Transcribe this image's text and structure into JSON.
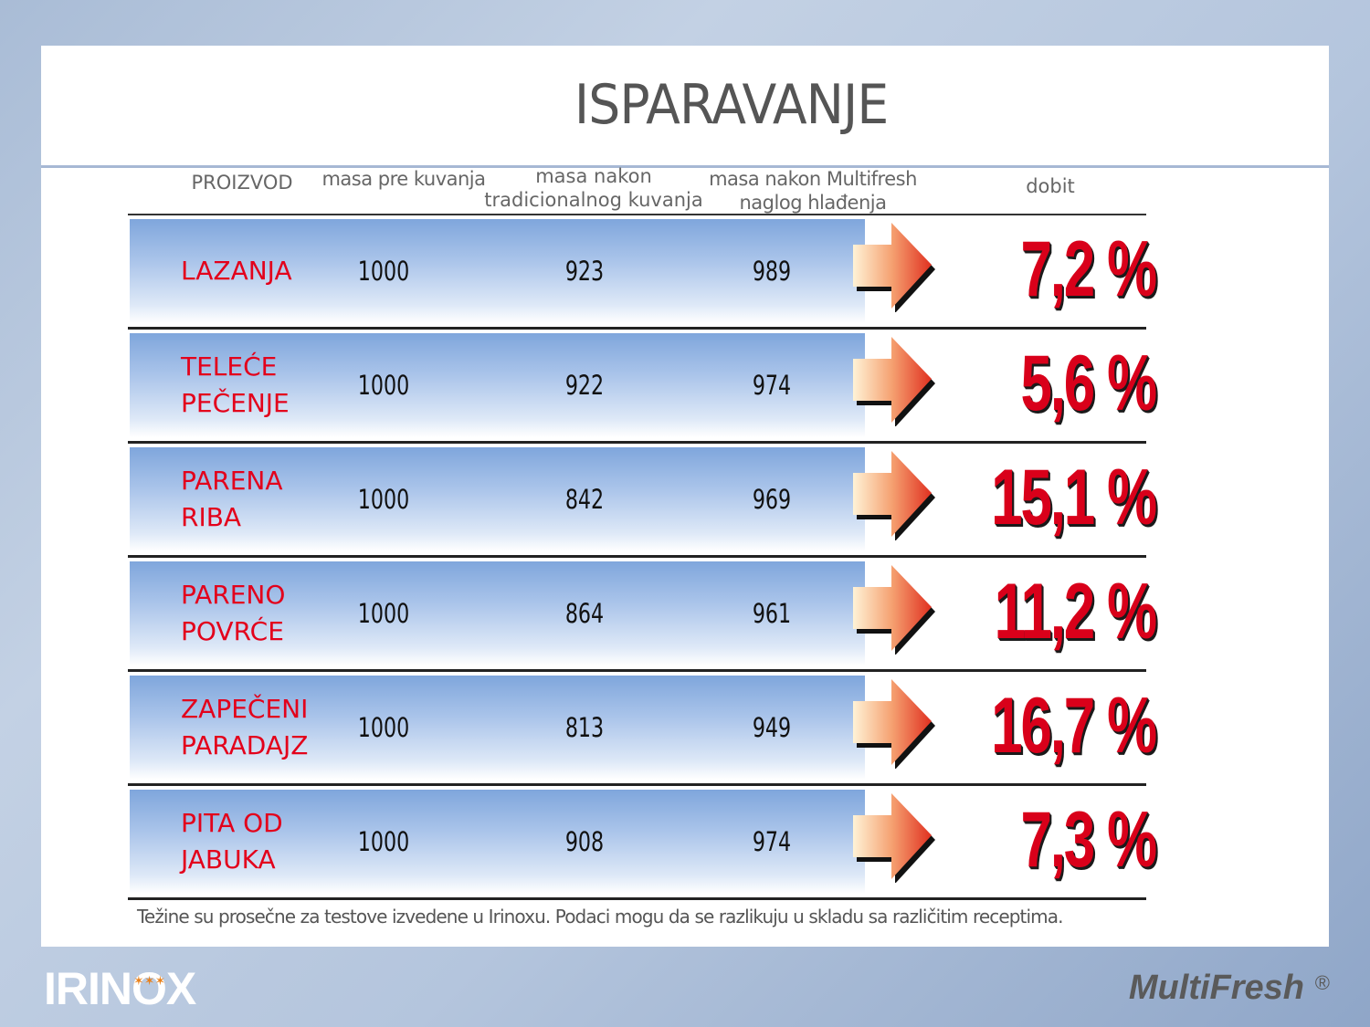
{
  "title": "ISPARAVANJE",
  "headers": {
    "product": "PROIZVOD",
    "mass_before": "masa pre kuvanja",
    "mass_traditional_1": "masa nakon",
    "mass_traditional_2": "tradicionalnog kuvanja",
    "mass_multifresh_1": "masa nakon Multifresh",
    "mass_multifresh_2": "naglog hlađenja",
    "gain": "dobit"
  },
  "rows": [
    {
      "name_1": "LAZANJA",
      "name_2": "",
      "before": "1000",
      "traditional": "923",
      "multifresh": "989",
      "gain": "7,2 %"
    },
    {
      "name_1": "TELEĆE",
      "name_2": "PEČENJE",
      "before": "1000",
      "traditional": "922",
      "multifresh": "974",
      "gain": "5,6 %"
    },
    {
      "name_1": "PARENA",
      "name_2": "RIBA",
      "before": "1000",
      "traditional": "842",
      "multifresh": "969",
      "gain": "15,1 %"
    },
    {
      "name_1": "PARENO",
      "name_2": "POVRĆE",
      "before": "1000",
      "traditional": "864",
      "multifresh": "961",
      "gain": "11,2 %"
    },
    {
      "name_1": "ZAPEČENI",
      "name_2": "PARADAJZ",
      "before": "1000",
      "traditional": "813",
      "multifresh": "949",
      "gain": "16,7 %"
    },
    {
      "name_1": "PITA OD",
      "name_2": "JABUKA",
      "before": "1000",
      "traditional": "908",
      "multifresh": "974",
      "gain": "7,3 %"
    }
  ],
  "note": "Težine su prosečne za testove izvedene u Irinoxu. Podaci mogu da se razlikuju u skladu sa različitim receptima.",
  "logos": {
    "irinox": "IRINOX",
    "multifresh": "MultiFresh",
    "registered": "®"
  },
  "colors": {
    "accent_red": "#e3001b",
    "band_blue": "#7fa6dc",
    "arrow_orange": "#e8502a"
  }
}
